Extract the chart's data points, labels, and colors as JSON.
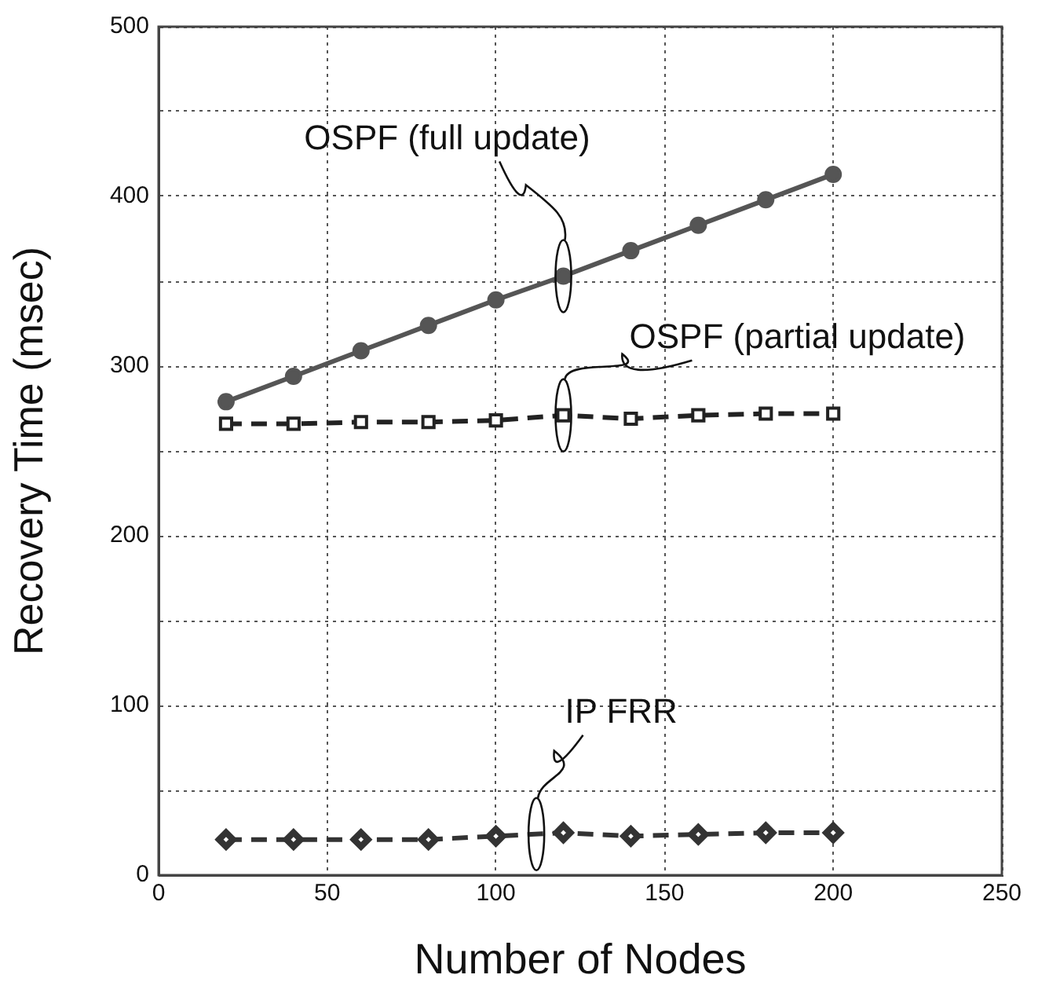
{
  "chart_data": {
    "type": "line",
    "xlabel": "Number of Nodes",
    "ylabel": "Recovery Time (msec)",
    "x": [
      20,
      40,
      60,
      80,
      100,
      120,
      140,
      160,
      180,
      200
    ],
    "series": [
      {
        "name": "OSPF (full update)",
        "color": "#555555",
        "marker": "circle",
        "line_style": "solid",
        "values": [
          279,
          294,
          309,
          324,
          339,
          353,
          368,
          383,
          398,
          413
        ]
      },
      {
        "name": "OSPF (partial update)",
        "color": "#222222",
        "marker": "square",
        "line_style": "dashed",
        "values": [
          266,
          266,
          267,
          267,
          268,
          271,
          269,
          271,
          272,
          272
        ]
      },
      {
        "name": "IP FRR",
        "color": "#333333",
        "marker": "diamond",
        "line_style": "dashed",
        "values": [
          21,
          21,
          21,
          21,
          23,
          25,
          23,
          24,
          25,
          25
        ]
      }
    ],
    "xlim": [
      0,
      250
    ],
    "xticks": [
      0,
      50,
      100,
      150,
      200,
      250
    ],
    "ylim": [
      0,
      500
    ],
    "yticks": [
      0,
      {
        "value": 50,
        "label": null
      },
      100,
      {
        "value": 150,
        "label": null
      },
      200,
      {
        "value": 250,
        "label": null
      },
      300,
      {
        "value": 350,
        "label": null
      },
      400,
      {
        "value": 450,
        "label": null
      },
      500
    ],
    "grid": true,
    "legend": false
  }
}
